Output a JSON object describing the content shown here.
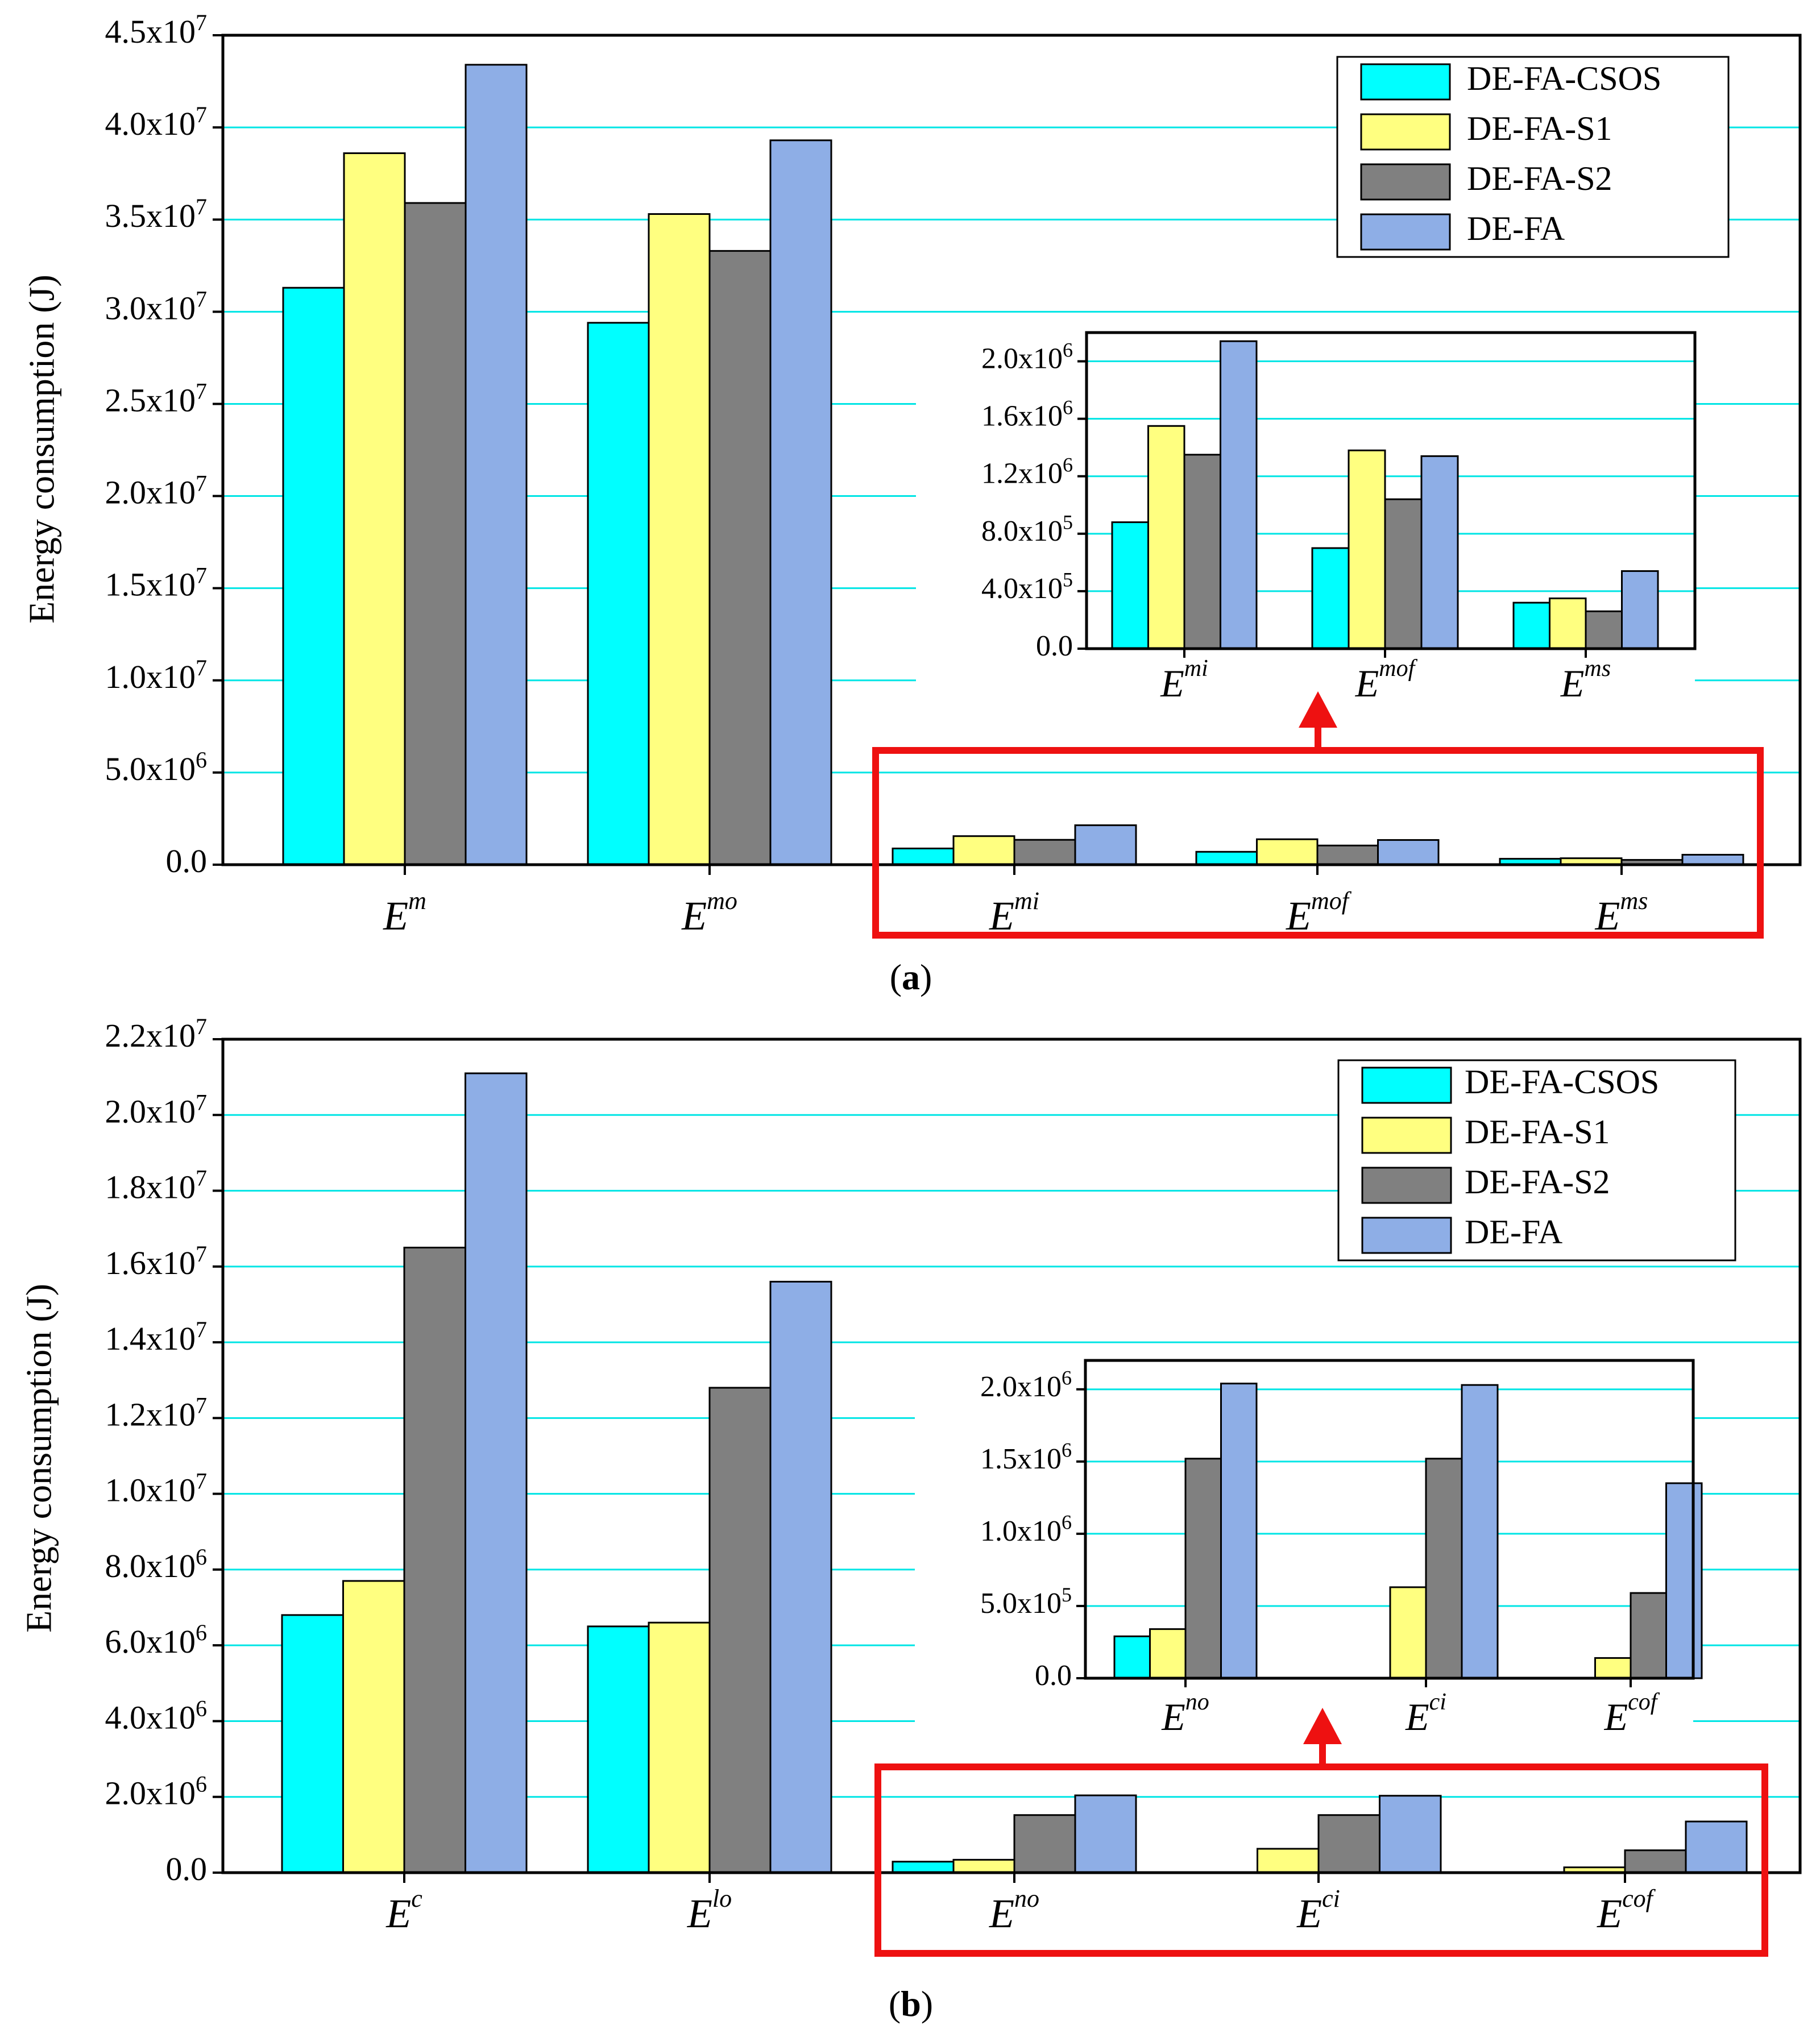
{
  "chart_data": [
    {
      "id": "a",
      "type": "bar",
      "caption": {
        "open": "(",
        "letter": "a",
        "close": ")"
      },
      "ylabel": "Energy consumption (J)",
      "ylim": [
        0,
        45000000
      ],
      "grid": true,
      "legend_position": "top-right",
      "series_names": [
        "DE-FA-CSOS",
        "DE-FA-S1",
        "DE-FA-S2",
        "DE-FA"
      ],
      "colors": [
        "#00ffff",
        "#ffff80",
        "#808080",
        "#8eaee6"
      ],
      "yticks": [
        {
          "value": 0,
          "base": "0.0",
          "exp": ""
        },
        {
          "value": 5000000,
          "base": "5.0x10",
          "exp": "6"
        },
        {
          "value": 10000000,
          "base": "1.0x10",
          "exp": "7"
        },
        {
          "value": 15000000,
          "base": "1.5x10",
          "exp": "7"
        },
        {
          "value": 20000000,
          "base": "2.0x10",
          "exp": "7"
        },
        {
          "value": 25000000,
          "base": "2.5x10",
          "exp": "7"
        },
        {
          "value": 30000000,
          "base": "3.0x10",
          "exp": "7"
        },
        {
          "value": 35000000,
          "base": "3.5x10",
          "exp": "7"
        },
        {
          "value": 40000000,
          "base": "4.0x10",
          "exp": "7"
        },
        {
          "value": 45000000,
          "base": "4.5x10",
          "exp": "7"
        }
      ],
      "categories": [
        {
          "base": "E",
          "sup": "m"
        },
        {
          "base": "E",
          "sup": "mo"
        },
        {
          "base": "E",
          "sup": "mi"
        },
        {
          "base": "E",
          "sup": "mof"
        },
        {
          "base": "E",
          "sup": "ms"
        }
      ],
      "series": [
        {
          "name": "DE-FA-CSOS",
          "values": [
            31300000,
            29400000,
            880000,
            700000,
            320000
          ]
        },
        {
          "name": "DE-FA-S1",
          "values": [
            38600000,
            35300000,
            1550000,
            1380000,
            350000
          ]
        },
        {
          "name": "DE-FA-S2",
          "values": [
            35900000,
            33300000,
            1350000,
            1040000,
            260000
          ]
        },
        {
          "name": "DE-FA",
          "values": [
            43400000,
            39300000,
            2140000,
            1340000,
            540000
          ]
        }
      ],
      "inset": {
        "ylim": [
          0,
          2200000
        ],
        "yticks": [
          {
            "value": 0,
            "base": "0.0",
            "exp": ""
          },
          {
            "value": 400000,
            "base": "4.0x10",
            "exp": "5"
          },
          {
            "value": 800000,
            "base": "8.0x10",
            "exp": "5"
          },
          {
            "value": 1200000,
            "base": "1.2x10",
            "exp": "6"
          },
          {
            "value": 1600000,
            "base": "1.6x10",
            "exp": "6"
          },
          {
            "value": 2000000,
            "base": "2.0x10",
            "exp": "6"
          }
        ],
        "categories": [
          {
            "base": "E",
            "sup": "mi"
          },
          {
            "base": "E",
            "sup": "mof"
          },
          {
            "base": "E",
            "sup": "ms"
          }
        ],
        "series": [
          {
            "name": "DE-FA-CSOS",
            "values": [
              880000,
              700000,
              320000
            ]
          },
          {
            "name": "DE-FA-S1",
            "values": [
              1550000,
              1380000,
              350000
            ]
          },
          {
            "name": "DE-FA-S2",
            "values": [
              1350000,
              1040000,
              260000
            ]
          },
          {
            "name": "DE-FA",
            "values": [
              2140000,
              1340000,
              540000
            ]
          }
        ]
      }
    },
    {
      "id": "b",
      "type": "bar",
      "caption": {
        "open": "(",
        "letter": "b",
        "close": ")"
      },
      "ylabel": "Energy consumption (J)",
      "ylim": [
        0,
        22000000
      ],
      "grid": true,
      "legend_position": "top-right",
      "series_names": [
        "DE-FA-CSOS",
        "DE-FA-S1",
        "DE-FA-S2",
        "DE-FA"
      ],
      "colors": [
        "#00ffff",
        "#ffff80",
        "#808080",
        "#8eaee6"
      ],
      "yticks": [
        {
          "value": 0,
          "base": "0.0",
          "exp": ""
        },
        {
          "value": 2000000,
          "base": "2.0x10",
          "exp": "6"
        },
        {
          "value": 4000000,
          "base": "4.0x10",
          "exp": "6"
        },
        {
          "value": 6000000,
          "base": "6.0x10",
          "exp": "6"
        },
        {
          "value": 8000000,
          "base": "8.0x10",
          "exp": "6"
        },
        {
          "value": 10000000,
          "base": "1.0x10",
          "exp": "7"
        },
        {
          "value": 12000000,
          "base": "1.2x10",
          "exp": "7"
        },
        {
          "value": 14000000,
          "base": "1.4x10",
          "exp": "7"
        },
        {
          "value": 16000000,
          "base": "1.6x10",
          "exp": "7"
        },
        {
          "value": 18000000,
          "base": "1.8x10",
          "exp": "7"
        },
        {
          "value": 20000000,
          "base": "2.0x10",
          "exp": "7"
        },
        {
          "value": 22000000,
          "base": "2.2x10",
          "exp": "7"
        }
      ],
      "categories": [
        {
          "base": "E",
          "sup": "c"
        },
        {
          "base": "E",
          "sup": "lo"
        },
        {
          "base": "E",
          "sup": "no"
        },
        {
          "base": "E",
          "sup": "ci"
        },
        {
          "base": "E",
          "sup": "cof"
        }
      ],
      "series": [
        {
          "name": "DE-FA-CSOS",
          "values": [
            6800000,
            6500000,
            290000,
            0,
            0
          ]
        },
        {
          "name": "DE-FA-S1",
          "values": [
            7700000,
            6600000,
            340000,
            630000,
            140000
          ]
        },
        {
          "name": "DE-FA-S2",
          "values": [
            16500000,
            12800000,
            1520000,
            1520000,
            590000
          ]
        },
        {
          "name": "DE-FA",
          "values": [
            21100000,
            15600000,
            2040000,
            2030000,
            1350000
          ]
        }
      ],
      "inset": {
        "ylim": [
          0,
          2200000
        ],
        "yticks": [
          {
            "value": 0,
            "base": "0.0",
            "exp": ""
          },
          {
            "value": 500000,
            "base": "5.0x10",
            "exp": "5"
          },
          {
            "value": 1000000,
            "base": "1.0x10",
            "exp": "6"
          },
          {
            "value": 1500000,
            "base": "1.5x10",
            "exp": "6"
          },
          {
            "value": 2000000,
            "base": "2.0x10",
            "exp": "6"
          }
        ],
        "categories": [
          {
            "base": "E",
            "sup": "no"
          },
          {
            "base": "E",
            "sup": "ci"
          },
          {
            "base": "E",
            "sup": "cof"
          }
        ],
        "series": [
          {
            "name": "DE-FA-CSOS",
            "values": [
              290000,
              0,
              0
            ]
          },
          {
            "name": "DE-FA-S1",
            "values": [
              340000,
              630000,
              140000
            ]
          },
          {
            "name": "DE-FA-S2",
            "values": [
              1520000,
              1520000,
              590000
            ]
          },
          {
            "name": "DE-FA",
            "values": [
              2040000,
              2030000,
              1350000
            ]
          }
        ]
      }
    }
  ]
}
